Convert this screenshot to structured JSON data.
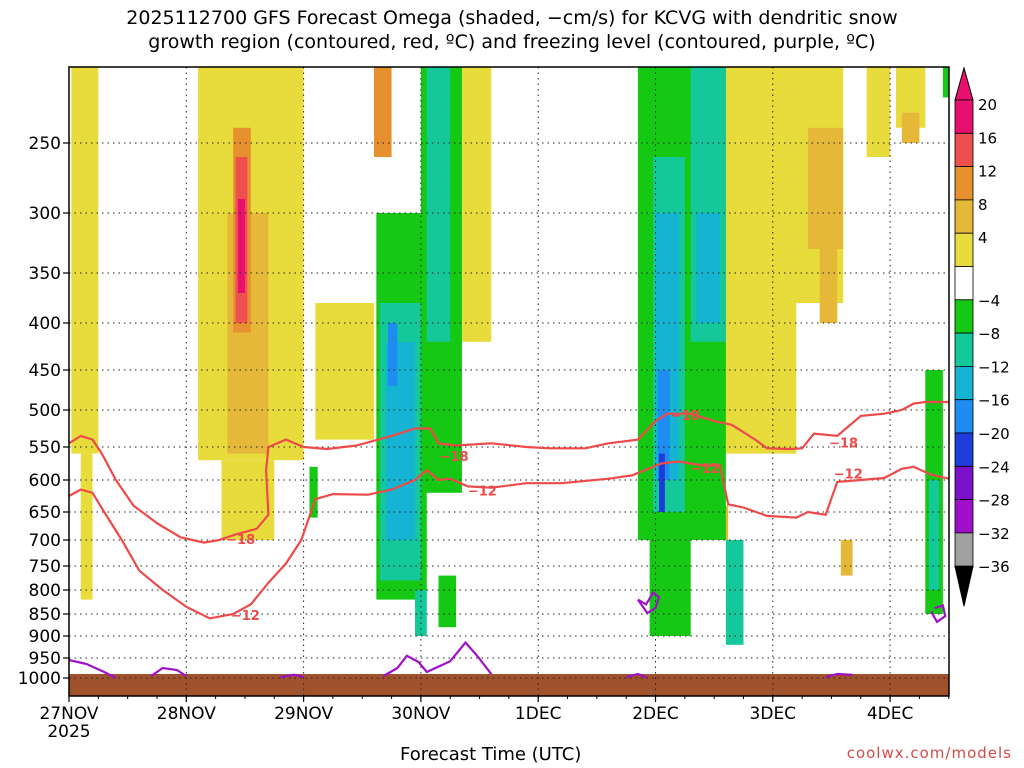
{
  "title": {
    "line1": "2025112700 GFS Forecast Omega (shaded, −cm/s) for KCVG with dendritic snow",
    "line2": "growth region (contoured, red, ºC) and freezing level (contoured, purple, ºC)"
  },
  "watermark": "coolwx.com/models",
  "colors": {
    "positive": [
      "#e8dc3c",
      "#e6b83a",
      "#e6902e",
      "#ee5050",
      "#e8106e"
    ],
    "negative": [
      "#14c814",
      "#14c89a",
      "#14b4d2",
      "#1e8cf0",
      "#1e3cdc",
      "#7a10c8",
      "#a010c8",
      "#a0a0a0",
      "#000000"
    ],
    "dgz_line": "#ee4a4a",
    "freezing_line": "#a010c8",
    "ground": "#a0522d"
  },
  "chart_data": {
    "type": "heatmap",
    "title": "2025112700 GFS Forecast Omega (shaded, −cm/s) for KCVG with dendritic snow growth region (contoured, red, ºC) and freezing level (contoured, purple, ºC)",
    "xlabel": "Forecast Time (UTC)",
    "ylabel": "",
    "x_ticks": [
      "27NOV",
      "28NOV",
      "29NOV",
      "30NOV",
      "1DEC",
      "2DEC",
      "3DEC",
      "4DEC"
    ],
    "x_tick_sub": "2025",
    "x_range_days": [
      0,
      7.5
    ],
    "y_ticks": [
      250,
      300,
      350,
      400,
      450,
      500,
      550,
      600,
      650,
      700,
      750,
      800,
      850,
      900,
      950,
      1000
    ],
    "y_range_hpa": [
      200,
      1040
    ],
    "colorbar_ticks": [
      20,
      16,
      12,
      8,
      4,
      -4,
      -8,
      -12,
      -16,
      -20,
      -24,
      -28,
      -32,
      -36
    ],
    "grid": true,
    "contour_labels": [
      {
        "text": "−18",
        "day": 1.34,
        "p": 700
      },
      {
        "text": "−12",
        "day": 1.38,
        "p": 855
      },
      {
        "text": "−18",
        "day": 3.16,
        "p": 565
      },
      {
        "text": "−12",
        "day": 3.4,
        "p": 618
      },
      {
        "text": "−18",
        "day": 5.13,
        "p": 508
      },
      {
        "text": "−12",
        "day": 5.3,
        "p": 583
      },
      {
        "text": "−18",
        "day": 6.48,
        "p": 545
      },
      {
        "text": "−12",
        "day": 6.52,
        "p": 592
      }
    ],
    "dgz_minus18": [
      [
        0,
        545
      ],
      [
        0.1,
        535
      ],
      [
        0.2,
        540
      ],
      [
        0.28,
        560
      ],
      [
        0.4,
        600
      ],
      [
        0.55,
        640
      ],
      [
        0.75,
        670
      ],
      [
        0.95,
        695
      ],
      [
        1.15,
        705
      ],
      [
        1.28,
        700
      ],
      [
        1.42,
        690
      ],
      [
        1.6,
        680
      ],
      [
        1.7,
        655
      ],
      [
        1.68,
        585
      ],
      [
        1.7,
        550
      ],
      [
        1.85,
        540
      ],
      [
        2.0,
        550
      ],
      [
        2.2,
        553
      ],
      [
        2.45,
        548
      ],
      [
        2.75,
        535
      ],
      [
        2.95,
        525
      ],
      [
        3.08,
        525
      ],
      [
        3.15,
        545
      ],
      [
        3.3,
        548
      ],
      [
        3.6,
        545
      ],
      [
        3.9,
        550
      ],
      [
        4.1,
        552
      ],
      [
        4.4,
        552
      ],
      [
        4.6,
        545
      ],
      [
        4.85,
        540
      ],
      [
        5.0,
        515
      ],
      [
        5.1,
        505
      ],
      [
        5.3,
        505
      ],
      [
        5.5,
        515
      ],
      [
        5.65,
        520
      ],
      [
        5.85,
        540
      ],
      [
        5.95,
        552
      ],
      [
        6.15,
        553
      ],
      [
        6.25,
        552
      ],
      [
        6.35,
        532
      ],
      [
        6.55,
        535
      ],
      [
        6.75,
        508
      ],
      [
        6.95,
        505
      ],
      [
        7.1,
        500
      ],
      [
        7.2,
        492
      ],
      [
        7.3,
        490
      ],
      [
        7.5,
        490
      ]
    ],
    "dgz_minus12": [
      [
        0,
        625
      ],
      [
        0.1,
        615
      ],
      [
        0.2,
        620
      ],
      [
        0.3,
        650
      ],
      [
        0.45,
        700
      ],
      [
        0.6,
        760
      ],
      [
        0.8,
        800
      ],
      [
        1.0,
        835
      ],
      [
        1.2,
        860
      ],
      [
        1.4,
        850
      ],
      [
        1.55,
        830
      ],
      [
        1.7,
        785
      ],
      [
        1.85,
        745
      ],
      [
        1.98,
        700
      ],
      [
        2.03,
        670
      ],
      [
        2.1,
        630
      ],
      [
        2.25,
        622
      ],
      [
        2.55,
        623
      ],
      [
        2.75,
        615
      ],
      [
        2.95,
        600
      ],
      [
        3.05,
        585
      ],
      [
        3.15,
        600
      ],
      [
        3.25,
        598
      ],
      [
        3.4,
        610
      ],
      [
        3.6,
        612
      ],
      [
        3.9,
        605
      ],
      [
        4.2,
        605
      ],
      [
        4.6,
        598
      ],
      [
        4.8,
        593
      ],
      [
        5.05,
        575
      ],
      [
        5.2,
        572
      ],
      [
        5.4,
        578
      ],
      [
        5.55,
        578
      ],
      [
        5.62,
        638
      ],
      [
        5.75,
        643
      ],
      [
        5.95,
        657
      ],
      [
        6.2,
        660
      ],
      [
        6.3,
        650
      ],
      [
        6.45,
        655
      ],
      [
        6.55,
        603
      ],
      [
        6.75,
        600
      ],
      [
        6.95,
        597
      ],
      [
        7.1,
        583
      ],
      [
        7.2,
        580
      ],
      [
        7.35,
        592
      ],
      [
        7.5,
        598
      ]
    ],
    "freezing_contours": [
      [
        [
          0,
          955
        ],
        [
          0.15,
          965
        ],
        [
          0.3,
          985
        ],
        [
          0.4,
          1000
        ]
      ],
      [
        [
          0.7,
          995
        ],
        [
          0.8,
          975
        ],
        [
          0.92,
          980
        ],
        [
          1.0,
          995
        ]
      ],
      [
        [
          1.8,
          998
        ],
        [
          1.92,
          992
        ],
        [
          2.0,
          998
        ]
      ],
      [
        [
          2.68,
          995
        ],
        [
          2.8,
          975
        ],
        [
          2.88,
          945
        ],
        [
          2.98,
          960
        ],
        [
          3.05,
          985
        ],
        [
          3.25,
          958
        ],
        [
          3.38,
          915
        ],
        [
          3.48,
          945
        ],
        [
          3.6,
          990
        ]
      ],
      [
        [
          4.75,
          998
        ],
        [
          4.85,
          990
        ],
        [
          4.92,
          998
        ]
      ],
      [
        [
          4.85,
          820
        ],
        [
          4.93,
          848
        ],
        [
          5.0,
          838
        ],
        [
          5.03,
          815
        ],
        [
          4.98,
          805
        ],
        [
          4.92,
          830
        ],
        [
          4.85,
          820
        ]
      ],
      [
        [
          6.45,
          998
        ],
        [
          6.55,
          990
        ],
        [
          6.68,
          992
        ]
      ],
      [
        [
          7.35,
          845
        ],
        [
          7.4,
          868
        ],
        [
          7.47,
          855
        ],
        [
          7.45,
          832
        ],
        [
          7.38,
          838
        ]
      ]
    ]
  }
}
